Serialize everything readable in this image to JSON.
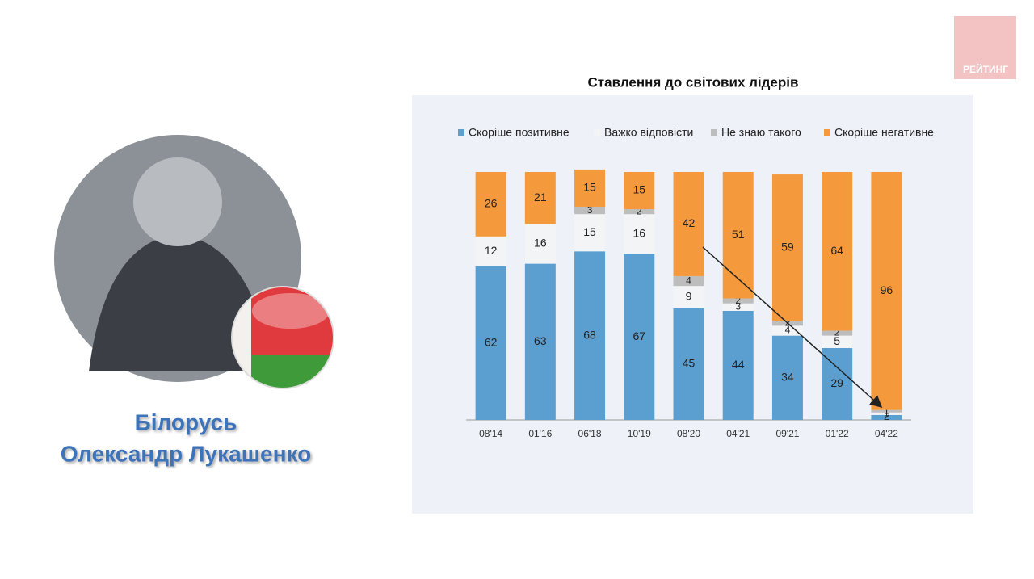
{
  "logo": "РЕЙТИНГ",
  "person": {
    "country": "Білорусь",
    "name": "Олександр Лукашенко"
  },
  "chart_data": {
    "type": "stacked-bar",
    "title": "Ставлення до світових лідерів",
    "categories": [
      "08'14",
      "01'16",
      "06'18",
      "10'19",
      "08'20",
      "04'21",
      "09'21",
      "01'22",
      "04'22"
    ],
    "series": [
      {
        "name": "Скоріше позитивне",
        "color": "#5b9fd0",
        "values": [
          62,
          63,
          68,
          67,
          45,
          44,
          34,
          29,
          2
        ]
      },
      {
        "name": "Важко відповісти",
        "color": "#f3f4f6",
        "values": [
          12,
          16,
          15,
          16,
          9,
          3,
          4,
          5,
          1
        ]
      },
      {
        "name": "Не знаю такого",
        "color": "#bdbdbd",
        "values": [
          null,
          null,
          3,
          2,
          4,
          2,
          2,
          2,
          1
        ]
      },
      {
        "name": "Скоріше негативне",
        "color": "#f59a3c",
        "values": [
          26,
          21,
          15,
          15,
          42,
          51,
          59,
          64,
          96
        ]
      }
    ],
    "ylim": [
      0,
      100
    ],
    "legend": "top"
  }
}
